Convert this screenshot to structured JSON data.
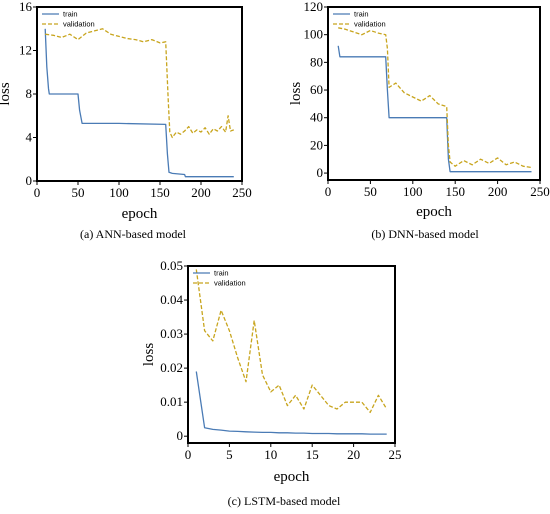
{
  "colors": {
    "train": "#4a7bb5",
    "validation": "#c8a51e",
    "frame": "#000000"
  },
  "chart_data": [
    {
      "type": "line",
      "caption": "(a) ANN-based model",
      "xlabel": "epoch",
      "ylabel": "loss",
      "xlim": [
        0,
        250
      ],
      "ylim": [
        0,
        16
      ],
      "xticks": [
        0,
        50,
        100,
        150,
        200,
        250
      ],
      "yticks": [
        0,
        4,
        8,
        12,
        16
      ],
      "legend": {
        "position": "top-left",
        "entries": [
          "train",
          "validation"
        ]
      },
      "series": [
        {
          "name": "train",
          "x": [
            10,
            12,
            14,
            15,
            50,
            52,
            55,
            100,
            157,
            159,
            161,
            165,
            180,
            181,
            240
          ],
          "y": [
            14,
            10.5,
            8.5,
            8.0,
            8.0,
            6.5,
            5.3,
            5.3,
            5.2,
            2.5,
            0.8,
            0.7,
            0.6,
            0.4,
            0.4
          ]
        },
        {
          "name": "validation",
          "x": [
            10,
            20,
            30,
            40,
            50,
            60,
            70,
            80,
            90,
            100,
            110,
            120,
            130,
            140,
            150,
            157,
            160,
            162,
            165,
            170,
            175,
            180,
            185,
            190,
            195,
            200,
            205,
            210,
            215,
            220,
            225,
            230,
            233,
            236,
            240
          ],
          "y": [
            13.5,
            13.4,
            13.2,
            13.5,
            13.0,
            13.6,
            13.8,
            14.0,
            13.5,
            13.3,
            13.1,
            13.0,
            12.8,
            13.0,
            12.7,
            12.8,
            7.5,
            4.5,
            4.0,
            4.5,
            4.3,
            4.6,
            5.0,
            4.4,
            4.7,
            4.5,
            4.9,
            4.3,
            4.8,
            4.6,
            5.0,
            4.5,
            6.0,
            4.6,
            4.7
          ]
        }
      ]
    },
    {
      "type": "line",
      "caption": "(b) DNN-based model",
      "xlabel": "epoch",
      "ylabel": "loss",
      "xlim": [
        0,
        250
      ],
      "ylim": [
        -5,
        120
      ],
      "xticks": [
        0,
        50,
        100,
        150,
        200,
        250
      ],
      "yticks": [
        0,
        20,
        40,
        60,
        80,
        100,
        120
      ],
      "legend": {
        "position": "top-left",
        "entries": [
          "train",
          "validation"
        ]
      },
      "series": [
        {
          "name": "train",
          "x": [
            12,
            14,
            68,
            70,
            72,
            140,
            142,
            144,
            240
          ],
          "y": [
            92,
            84,
            84,
            60,
            40,
            40,
            10,
            1,
            1
          ]
        },
        {
          "name": "validation",
          "x": [
            12,
            20,
            30,
            40,
            50,
            60,
            68,
            70,
            72,
            80,
            90,
            100,
            110,
            120,
            130,
            140,
            142,
            144,
            150,
            160,
            170,
            180,
            190,
            200,
            210,
            220,
            230,
            240
          ],
          "y": [
            105,
            104,
            102,
            100,
            103,
            101,
            100,
            90,
            62,
            65,
            58,
            55,
            52,
            56,
            50,
            48,
            20,
            8,
            5,
            9,
            6,
            10,
            7,
            11,
            6,
            8,
            5,
            4
          ]
        }
      ]
    },
    {
      "type": "line",
      "caption": "(c) LSTM-based model",
      "xlabel": "epoch",
      "ylabel": "loss",
      "xlim": [
        0,
        25
      ],
      "ylim": [
        -0.002,
        0.05
      ],
      "xticks": [
        0,
        5,
        10,
        15,
        20,
        25
      ],
      "yticks": [
        "0",
        "0.01",
        "0.02",
        "0.03",
        "0.04",
        "0.05"
      ],
      "legend": {
        "position": "top-left",
        "entries": [
          "train",
          "validation"
        ]
      },
      "series": [
        {
          "name": "train",
          "x": [
            1,
            2,
            3,
            4,
            5,
            6,
            7,
            8,
            9,
            10,
            11,
            12,
            13,
            14,
            15,
            16,
            17,
            18,
            19,
            20,
            21,
            22,
            23,
            24
          ],
          "y": [
            0.019,
            0.0025,
            0.002,
            0.0018,
            0.0015,
            0.0014,
            0.0013,
            0.0012,
            0.0011,
            0.0011,
            0.001,
            0.001,
            0.0009,
            0.0009,
            0.0008,
            0.0008,
            0.0008,
            0.0007,
            0.0007,
            0.0007,
            0.0007,
            0.0006,
            0.0006,
            0.0006
          ]
        },
        {
          "name": "validation",
          "x": [
            1,
            2,
            3,
            4,
            5,
            6,
            7,
            8,
            9,
            10,
            11,
            12,
            13,
            14,
            15,
            16,
            17,
            18,
            19,
            20,
            21,
            22,
            23,
            24
          ],
          "y": [
            0.049,
            0.031,
            0.028,
            0.037,
            0.031,
            0.023,
            0.016,
            0.034,
            0.018,
            0.013,
            0.015,
            0.009,
            0.012,
            0.008,
            0.015,
            0.012,
            0.009,
            0.008,
            0.01,
            0.01,
            0.01,
            0.007,
            0.012,
            0.008
          ]
        }
      ]
    }
  ]
}
